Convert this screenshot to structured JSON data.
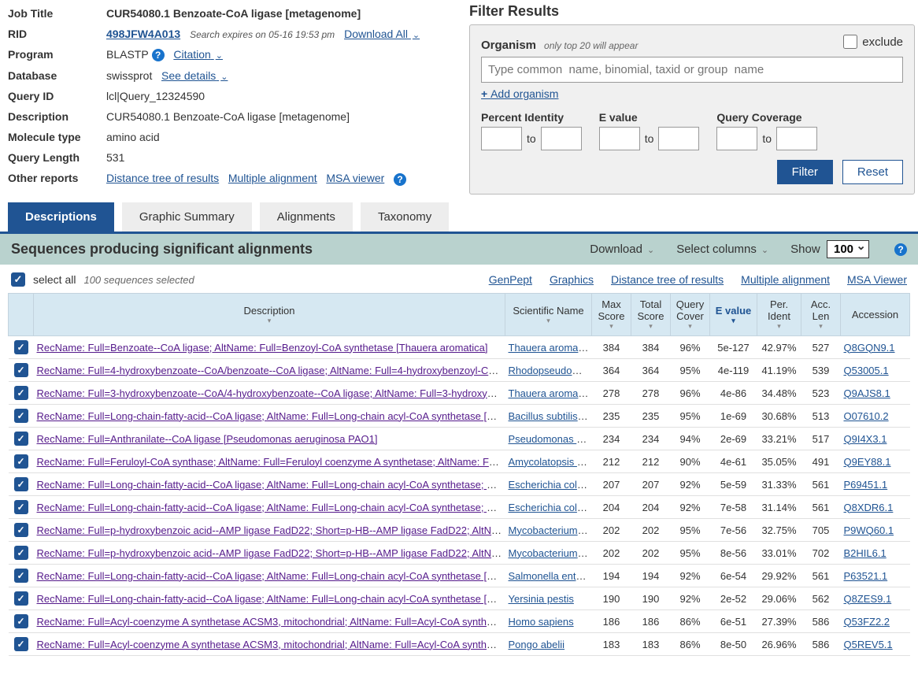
{
  "job": {
    "title_label": "Job Title",
    "title_value": "CUR54080.1 Benzoate-CoA ligase [metagenome]",
    "rid_label": "RID",
    "rid_value": "498JFW4A013",
    "rid_expires": "Search expires on 05-16 19:53 pm",
    "download_all": "Download All",
    "program_label": "Program",
    "program_value": "BLASTP",
    "citation": "Citation",
    "database_label": "Database",
    "database_value": "swissprot",
    "see_details": "See details",
    "query_id_label": "Query ID",
    "query_id_value": "lcl|Query_12324590",
    "description_label": "Description",
    "description_value": "CUR54080.1 Benzoate-CoA ligase [metagenome]",
    "mol_type_label": "Molecule type",
    "mol_type_value": "amino acid",
    "query_len_label": "Query Length",
    "query_len_value": "531",
    "other_reports_label": "Other reports",
    "other_reports": {
      "distance_tree": "Distance tree of results",
      "multiple_align": "Multiple alignment",
      "msa_viewer": "MSA viewer"
    }
  },
  "filter": {
    "title": "Filter Results",
    "organism_label": "Organism",
    "organism_hint": "only top 20 will appear",
    "exclude_label": "exclude",
    "organism_placeholder": "Type common  name, binomial, taxid or group  name",
    "add_organism": "Add organism",
    "percent_identity_label": "Percent Identity",
    "evalue_label": "E value",
    "query_coverage_label": "Query Coverage",
    "to": "to",
    "filter_btn": "Filter",
    "reset_btn": "Reset"
  },
  "tabs": {
    "descriptions": "Descriptions",
    "graphic": "Graphic Summary",
    "alignments": "Alignments",
    "taxonomy": "Taxonomy"
  },
  "seqHeader": {
    "title": "Sequences producing significant alignments",
    "download": "Download",
    "select_columns": "Select columns",
    "show": "Show",
    "show_value": "100"
  },
  "selectRow": {
    "select_all": "select all",
    "selected_hint": "100 sequences selected",
    "genpept": "GenPept",
    "graphics": "Graphics",
    "distance_tree": "Distance tree of results",
    "multiple_align": "Multiple alignment",
    "msa_viewer": "MSA Viewer"
  },
  "tableHeader": {
    "description": "Description",
    "scientific_name": "Scientific Name",
    "max_score": "Max Score",
    "total_score": "Total Score",
    "query_cover": "Query Cover",
    "e_value": "E value",
    "per_ident": "Per. Ident",
    "acc_len": "Acc. Len",
    "accession": "Accession"
  },
  "rows": [
    {
      "desc": "RecName: Full=Benzoate--CoA ligase; AltName: Full=Benzoyl-CoA synthetase [Thauera aromatica]",
      "sci": "Thauera aromatica",
      "max": "384",
      "total": "384",
      "cover": "96%",
      "e": "5e-127",
      "ident": "42.97%",
      "len": "527",
      "acc": "Q8GQN9.1"
    },
    {
      "desc": "RecName: Full=4-hydroxybenzoate--CoA/benzoate--CoA ligase; AltName: Full=4-hydroxybenzoyl-CoA synthetas...",
      "sci": "Rhodopseudomo...",
      "max": "364",
      "total": "364",
      "cover": "95%",
      "e": "4e-119",
      "ident": "41.19%",
      "len": "539",
      "acc": "Q53005.1"
    },
    {
      "desc": "RecName: Full=3-hydroxybenzoate--CoA/4-hydroxybenzoate--CoA ligase; AltName: Full=3-hydroxybenzoyl-CoA ...",
      "sci": "Thauera aromatica",
      "max": "278",
      "total": "278",
      "cover": "96%",
      "e": "4e-86",
      "ident": "34.48%",
      "len": "523",
      "acc": "Q9AJS8.1"
    },
    {
      "desc": "RecName: Full=Long-chain-fatty-acid--CoA ligase; AltName: Full=Long-chain acyl-CoA synthetase [Bacillus subtil...",
      "sci": "Bacillus subtilis s...",
      "max": "235",
      "total": "235",
      "cover": "95%",
      "e": "1e-69",
      "ident": "30.68%",
      "len": "513",
      "acc": "O07610.2"
    },
    {
      "desc": "RecName: Full=Anthranilate--CoA ligase [Pseudomonas aeruginosa PAO1]",
      "sci": "Pseudomonas a...",
      "max": "234",
      "total": "234",
      "cover": "94%",
      "e": "2e-69",
      "ident": "33.21%",
      "len": "517",
      "acc": "Q9I4X3.1"
    },
    {
      "desc": "RecName: Full=Feruloyl-CoA synthase; AltName: Full=Feruloyl coenzyme A synthetase; AltName: Full=Feruloyl-...",
      "sci": "Amycolatopsis sp.",
      "max": "212",
      "total": "212",
      "cover": "90%",
      "e": "4e-61",
      "ident": "35.05%",
      "len": "491",
      "acc": "Q9EY88.1"
    },
    {
      "desc": "RecName: Full=Long-chain-fatty-acid--CoA ligase; AltName: Full=Long-chain acyl-CoA synthetase; Short=Acyl-C...",
      "sci": "Escherichia coli ...",
      "max": "207",
      "total": "207",
      "cover": "92%",
      "e": "5e-59",
      "ident": "31.33%",
      "len": "561",
      "acc": "P69451.1"
    },
    {
      "desc": "RecName: Full=Long-chain-fatty-acid--CoA ligase; AltName: Full=Long-chain acyl-CoA synthetase; Short=Acyl-C...",
      "sci": "Escherichia coli ...",
      "max": "204",
      "total": "204",
      "cover": "92%",
      "e": "7e-58",
      "ident": "31.14%",
      "len": "561",
      "acc": "Q8XDR6.1"
    },
    {
      "desc": "RecName: Full=p-hydroxybenzoic acid--AMP ligase FadD22; Short=p-HB--AMP ligase FadD22; AltName: Full=p-...",
      "sci": "Mycobacterium t...",
      "max": "202",
      "total": "202",
      "cover": "95%",
      "e": "7e-56",
      "ident": "32.75%",
      "len": "705",
      "acc": "P9WQ60.1"
    },
    {
      "desc": "RecName: Full=p-hydroxybenzoic acid--AMP ligase FadD22; Short=p-HB--AMP ligase FadD22; AltName: Full=p-...",
      "sci": "Mycobacterium ...",
      "max": "202",
      "total": "202",
      "cover": "95%",
      "e": "8e-56",
      "ident": "33.01%",
      "len": "702",
      "acc": "B2HIL6.1"
    },
    {
      "desc": "RecName: Full=Long-chain-fatty-acid--CoA ligase; AltName: Full=Long-chain acyl-CoA synthetase [Salmonella e...",
      "sci": "Salmonella enter...",
      "max": "194",
      "total": "194",
      "cover": "92%",
      "e": "6e-54",
      "ident": "29.92%",
      "len": "561",
      "acc": "P63521.1"
    },
    {
      "desc": "RecName: Full=Long-chain-fatty-acid--CoA ligase; AltName: Full=Long-chain acyl-CoA synthetase [Yersinia pestis]",
      "sci": "Yersinia pestis",
      "max": "190",
      "total": "190",
      "cover": "92%",
      "e": "2e-52",
      "ident": "29.06%",
      "len": "562",
      "acc": "Q8ZES9.1"
    },
    {
      "desc": "RecName: Full=Acyl-coenzyme A synthetase ACSM3, mitochondrial; AltName: Full=Acyl-CoA synthetase mediu...",
      "sci": "Homo sapiens",
      "max": "186",
      "total": "186",
      "cover": "86%",
      "e": "6e-51",
      "ident": "27.39%",
      "len": "586",
      "acc": "Q53FZ2.2"
    },
    {
      "desc": "RecName: Full=Acyl-coenzyme A synthetase ACSM3, mitochondrial; AltName: Full=Acyl-CoA synthetase mediu...",
      "sci": "Pongo abelii",
      "max": "183",
      "total": "183",
      "cover": "86%",
      "e": "8e-50",
      "ident": "26.96%",
      "len": "586",
      "acc": "Q5REV5.1"
    }
  ]
}
